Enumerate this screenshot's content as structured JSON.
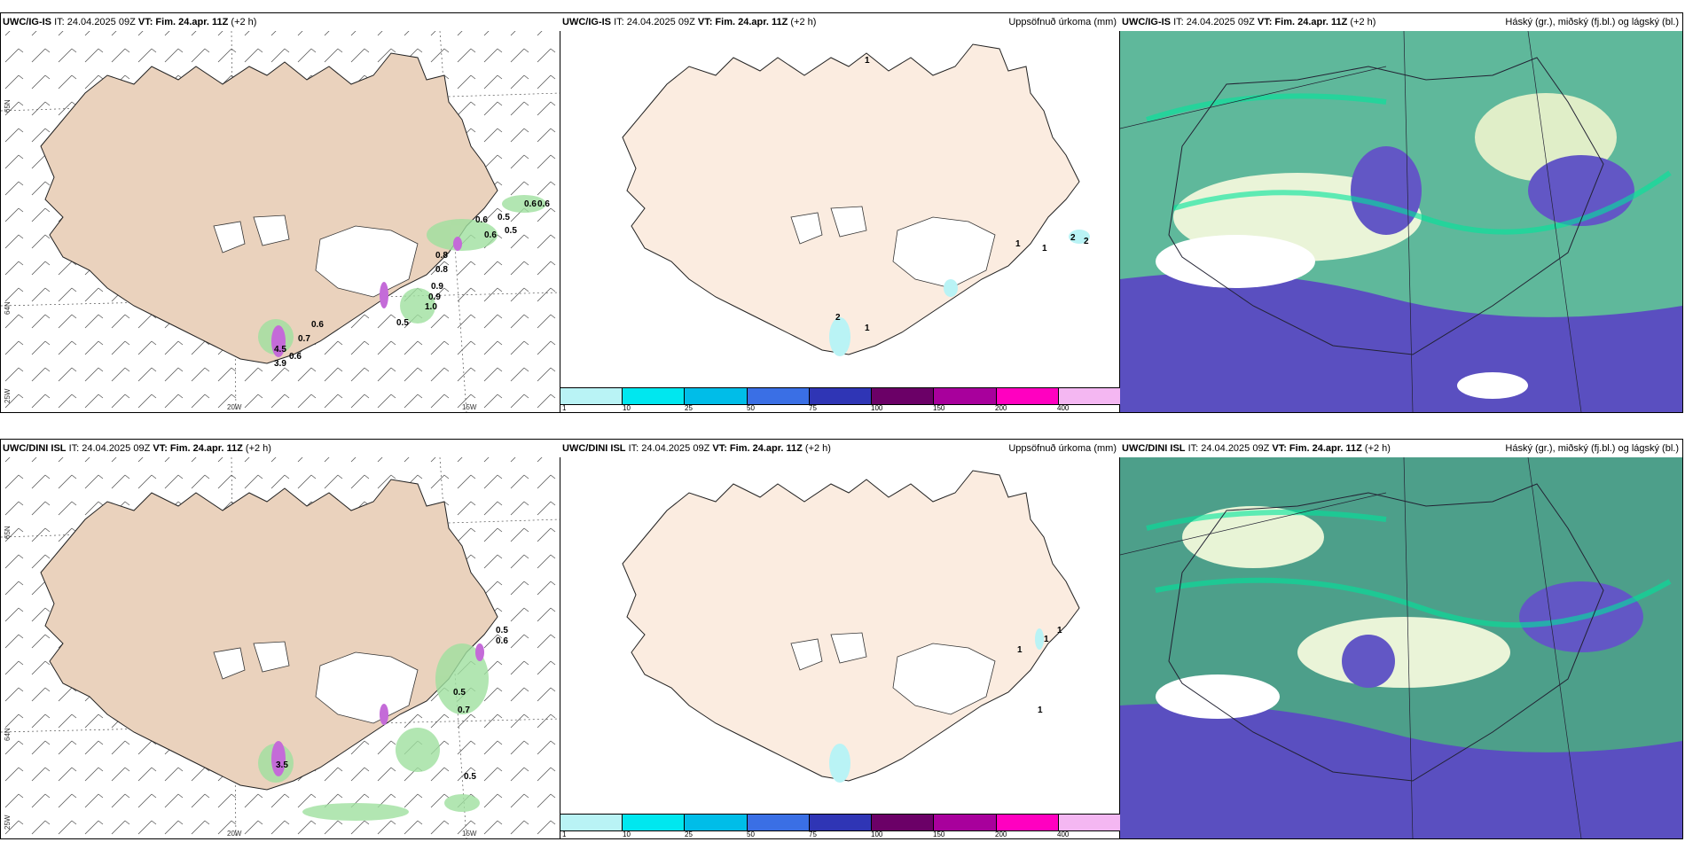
{
  "row1": {
    "model": "UWC/IG-IS",
    "it": "IT: 24.04.2025 09Z",
    "vt_label": "VT:",
    "vt_value": "Fim. 24.apr. 11Z",
    "lead": "(+2 h)"
  },
  "row2": {
    "model": "UWC/DINI ISL",
    "it": "IT: 24.04.2025 09Z",
    "vt_label": "VT:",
    "vt_value": "Fim. 24.apr. 11Z",
    "lead": "(+2 h)"
  },
  "precip_title": "Uppsöfnuð úrkoma (mm)",
  "cloud_title": "Háský (gr.), miðský (fj.bl.) og lágský (bl.)",
  "legend": {
    "ticks": [
      "1",
      "10",
      "25",
      "50",
      "75",
      "100",
      "150",
      "200",
      "400"
    ],
    "colors": [
      "#b9f3f5",
      "#00e7ef",
      "#00bde8",
      "#3a6fe5",
      "#2f35b5",
      "#6b0067",
      "#a8009c",
      "#ff00c0",
      "#f4b7f2"
    ]
  },
  "axes": {
    "lat_top": "65N",
    "lat_mid": "64N",
    "lat_bottom": "25W",
    "lon_left": "20W",
    "lon_right": "15W"
  },
  "wind_values_top": [
    "0.6",
    "0.6",
    "0.6",
    "0.5",
    "0.5",
    "0.6",
    "0.8",
    "0.8",
    "0.9",
    "0.9",
    "1.0",
    "0.5",
    "0.6",
    "0.7",
    "0.6",
    "4.5",
    "3.9"
  ],
  "wind_values_bottom": [
    "0.5",
    "0.6",
    "0.5",
    "0.7",
    "0.5",
    "3.5"
  ],
  "precip_values_top": [
    "1",
    "1",
    "1",
    "1",
    "2",
    "2",
    "2"
  ],
  "precip_values_bottom": [
    "1",
    "1",
    "1",
    "1"
  ]
}
